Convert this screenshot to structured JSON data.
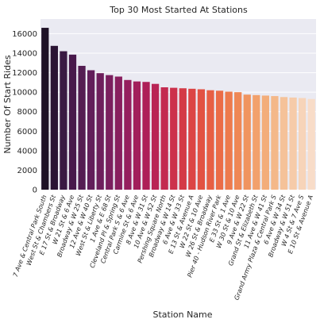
{
  "chart_data": {
    "type": "bar",
    "title": "Top 30 Most Started At Stations",
    "xlabel": "Station Name",
    "ylabel": "Number Of Start Rides",
    "ylim": [
      0,
      17500
    ],
    "yticks": [
      0,
      2000,
      4000,
      6000,
      8000,
      10000,
      12000,
      14000,
      16000
    ],
    "grid": true,
    "categories": [
      "7 Ave & Central Park South",
      "West St & Chambers St",
      "E 17 St & Broadway",
      "W 21 St & 6 Ave",
      "Broadway & W 25 St",
      "12 Ave & W 40 St",
      "West St & Liberty St",
      "1 Ave & E 68 St",
      "Cleveland Pl & Spring St",
      "Central Park S & 6 Ave",
      "Carmine St & 6 Ave",
      "8 Ave & W 31 St",
      "10 Ave & W 52 St",
      "Pershing Square North",
      "Broadway & W 14 St",
      "6 Ave & W 33 St",
      "E 13 St & Avenue A",
      "W 22 St & 10 Ave",
      "W 26 St & Broadway",
      "Pier 40 - Hudson River Park",
      "E 33 St & 1 Ave",
      "W 30 St & 10 Ave",
      "9 Ave & W 22 St",
      "Grand St & Elizabeth St",
      "11 Ave & W 41 St",
      "Grand Army Plaza & Central Park S",
      "6 Ave & W 34 St",
      "Broadway & W 51 St",
      "W 4 St & 7 Ave S",
      "E 10 St & Avenue A"
    ],
    "values": [
      16600,
      14750,
      14200,
      13850,
      12700,
      12250,
      11950,
      11750,
      11600,
      11250,
      11100,
      11050,
      10850,
      10500,
      10450,
      10400,
      10350,
      10300,
      10200,
      10150,
      10050,
      10000,
      9750,
      9700,
      9650,
      9600,
      9500,
      9450,
      9400,
      9300
    ],
    "colors": [
      "#1e1126",
      "#2b1434",
      "#3a1a42",
      "#48194b",
      "#541d52",
      "#621e5a",
      "#6e1f5c",
      "#7b1f5e",
      "#881f5e",
      "#951f5e",
      "#a21f5b",
      "#ae1f58",
      "#b92455",
      "#c32a50",
      "#cc314b",
      "#d43a46",
      "#dc4544",
      "#e25243",
      "#e75f44",
      "#eb6c47",
      "#ed7a4d",
      "#ef8755",
      "#f0945f",
      "#f2a16c",
      "#f3ad7a",
      "#f4b889",
      "#f5c299",
      "#f6cba9",
      "#f7d4b9",
      "#f8dcc8"
    ],
    "plot_bg": "#eaeaf2",
    "grid_color": "#ffffff"
  }
}
